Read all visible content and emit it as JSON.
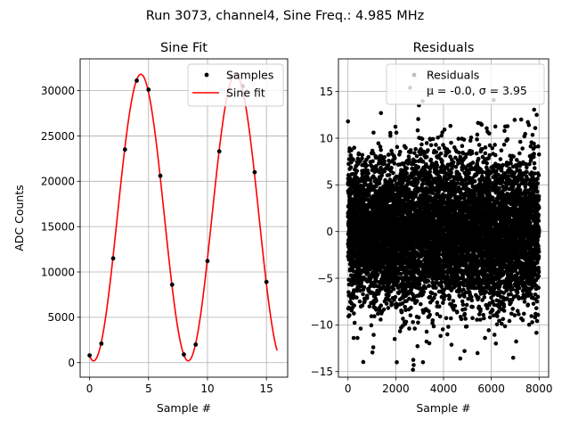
{
  "suptitle": "Run 3073, channel4, Sine Freq.: 4.985 MHz",
  "chart_data": [
    {
      "type": "line",
      "title": "Sine Fit",
      "xlabel": "Sample #",
      "ylabel": "ADC Counts",
      "xlim": [
        -0.8,
        16.8
      ],
      "ylim": [
        -1600,
        33500
      ],
      "xticks": [
        0,
        5,
        10,
        15
      ],
      "yticks": [
        0,
        5000,
        10000,
        15000,
        20000,
        25000,
        30000
      ],
      "grid": true,
      "legend_position": "top-right",
      "series": [
        {
          "name": "Samples",
          "style": "points",
          "color": "#000000",
          "x": [
            0,
            1,
            2,
            3,
            4,
            5,
            6,
            7,
            8,
            9,
            10,
            11,
            12,
            13,
            14,
            15
          ],
          "y": [
            800,
            2100,
            11500,
            23500,
            31100,
            30100,
            20600,
            8600,
            900,
            2000,
            11200,
            23300,
            31500,
            30500,
            21000,
            8900
          ]
        },
        {
          "name": "Sine fit",
          "style": "line",
          "color": "#ff0000",
          "model": {
            "amplitude": 15800,
            "offset": 16000,
            "period_samples": 8.025,
            "peak_at": 4.35,
            "x_start": 0,
            "x_end": 15.9
          }
        }
      ]
    },
    {
      "type": "scatter",
      "title": "Residuals",
      "xlabel": "Sample #",
      "xlim": [
        -400,
        8400
      ],
      "ylim": [
        -15.6,
        18.5
      ],
      "xticks": [
        0,
        2000,
        4000,
        6000,
        8000
      ],
      "yticks": [
        -15,
        -10,
        -5,
        0,
        5,
        10,
        15
      ],
      "grid": true,
      "legend_position": "top-right",
      "series": [
        {
          "name": "Residuals",
          "legend_line2": "μ = -0.0, σ = 3.95",
          "color": "#000000",
          "n_points": 8000,
          "mean": 0.0,
          "std": 3.95,
          "outliers": [
            {
              "x": 2750,
              "y": -14.3
            },
            {
              "x": 2720,
              "y": -14.8
            },
            {
              "x": 4700,
              "y": -13.6
            },
            {
              "x": 2600,
              "y": 15.4
            },
            {
              "x": 3400,
              "y": 15.2
            },
            {
              "x": 6100,
              "y": 14.1
            },
            {
              "x": 0,
              "y": 11.8
            },
            {
              "x": 7900,
              "y": 12.5
            }
          ]
        }
      ]
    }
  ]
}
